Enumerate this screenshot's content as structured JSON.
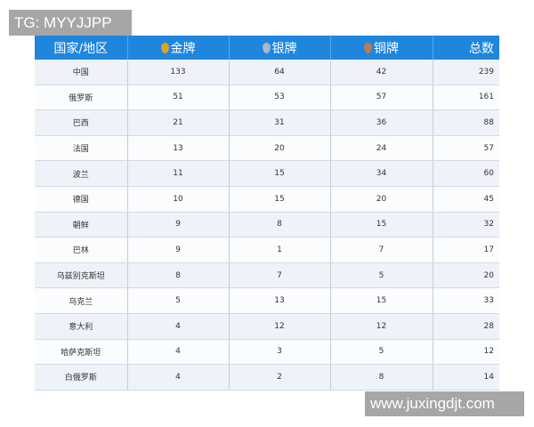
{
  "watermarks": {
    "top": "TG: MYYJJPP",
    "bottom": "www.juxingdjt.com"
  },
  "headers": [
    "国家/地区",
    "金牌",
    "银牌",
    "铜牌",
    "总数"
  ],
  "medal_icons": [
    {
      "name": "gold-medal-icon",
      "color": "#d9a520"
    },
    {
      "name": "silver-medal-icon",
      "color": "#a9b8c8"
    },
    {
      "name": "bronze-medal-icon",
      "color": "#b97a57"
    }
  ],
  "rows": [
    [
      "中国",
      "133",
      "64",
      "42",
      "239"
    ],
    [
      "俄罗斯",
      "51",
      "53",
      "57",
      "161"
    ],
    [
      "巴西",
      "21",
      "31",
      "36",
      "88"
    ],
    [
      "法国",
      "13",
      "20",
      "24",
      "57"
    ],
    [
      "波兰",
      "11",
      "15",
      "34",
      "60"
    ],
    [
      "德国",
      "10",
      "15",
      "20",
      "45"
    ],
    [
      "朝鲜",
      "9",
      "8",
      "15",
      "32"
    ],
    [
      "巴林",
      "9",
      "1",
      "7",
      "17"
    ],
    [
      "乌兹别克斯坦",
      "8",
      "7",
      "5",
      "20"
    ],
    [
      "乌克兰",
      "5",
      "13",
      "15",
      "33"
    ],
    [
      "意大利",
      "4",
      "12",
      "12",
      "28"
    ],
    [
      "哈萨克斯坦",
      "4",
      "3",
      "5",
      "12"
    ],
    [
      "白俄罗斯",
      "4",
      "2",
      "8",
      "14"
    ]
  ]
}
